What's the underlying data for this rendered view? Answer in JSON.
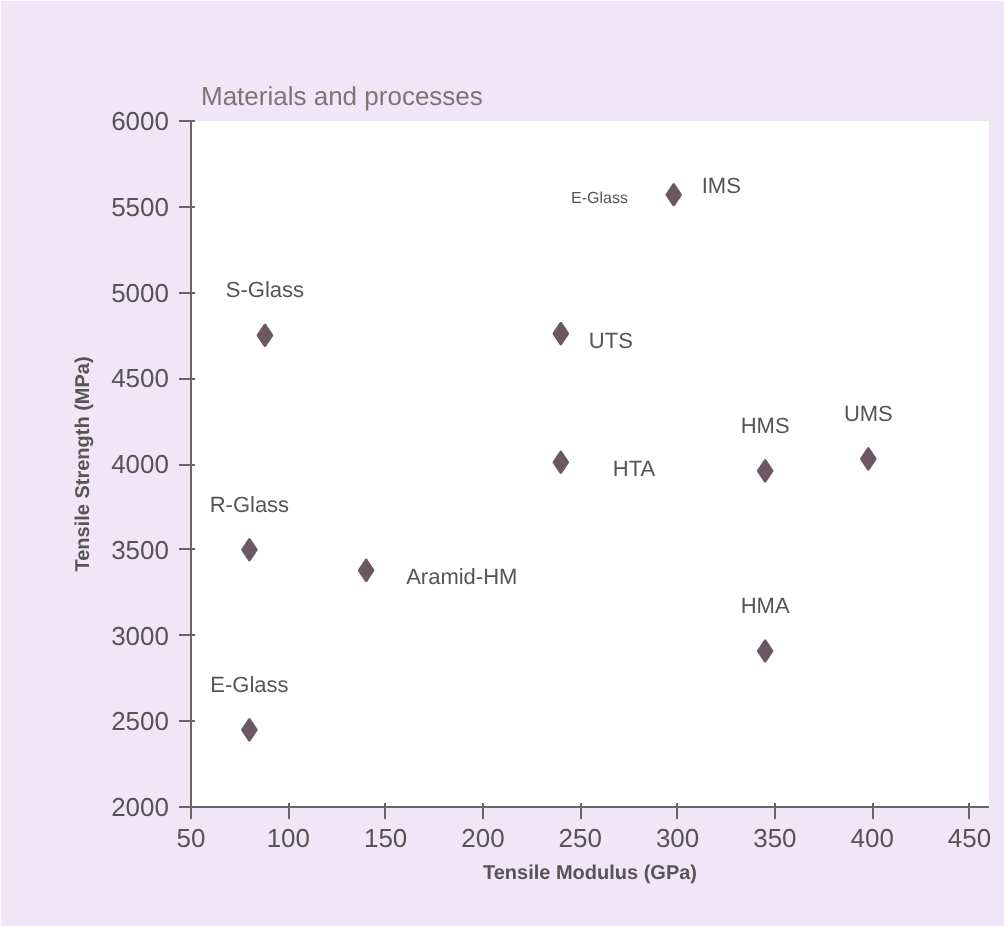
{
  "chart_data": {
    "type": "scatter",
    "title": "Materials and processes",
    "xlabel": "Tensile Modulus (GPa)",
    "ylabel": "Tensile Strength (MPa)",
    "x": [
      80,
      80,
      88,
      140,
      240,
      240,
      298,
      345,
      345,
      398
    ],
    "values": [
      2450,
      3500,
      4750,
      3380,
      4760,
      4010,
      5570,
      3960,
      2910,
      4030
    ],
    "color": "#6b5862",
    "marker": "diamond",
    "grid": false,
    "xlim": [
      50,
      460
    ],
    "xticks": [
      50,
      100,
      150,
      200,
      250,
      300,
      350,
      400,
      450
    ],
    "ylim": [
      2000,
      6000
    ],
    "yticks": [
      2000,
      2500,
      3000,
      3500,
      4000,
      4500,
      5000,
      5500,
      6000
    ],
    "annotations": [
      {
        "text": "E-Glass",
        "x": 80,
        "y": 2450
      },
      {
        "text": "R-Glass",
        "x": 80,
        "y": 3500
      },
      {
        "text": "S-Glass",
        "x": 88,
        "y": 4750
      },
      {
        "text": "Aramid-HM",
        "x": 140,
        "y": 3380
      },
      {
        "text": "UTS",
        "x": 240,
        "y": 4760
      },
      {
        "text": "HTA",
        "x": 240,
        "y": 4010
      },
      {
        "text": "IMS",
        "x": 298,
        "y": 5570
      },
      {
        "text": "HMS",
        "x": 345,
        "y": 3960
      },
      {
        "text": "HMA",
        "x": 345,
        "y": 2910
      },
      {
        "text": "UMS",
        "x": 398,
        "y": 4030
      },
      "E-Glass"
    ]
  }
}
